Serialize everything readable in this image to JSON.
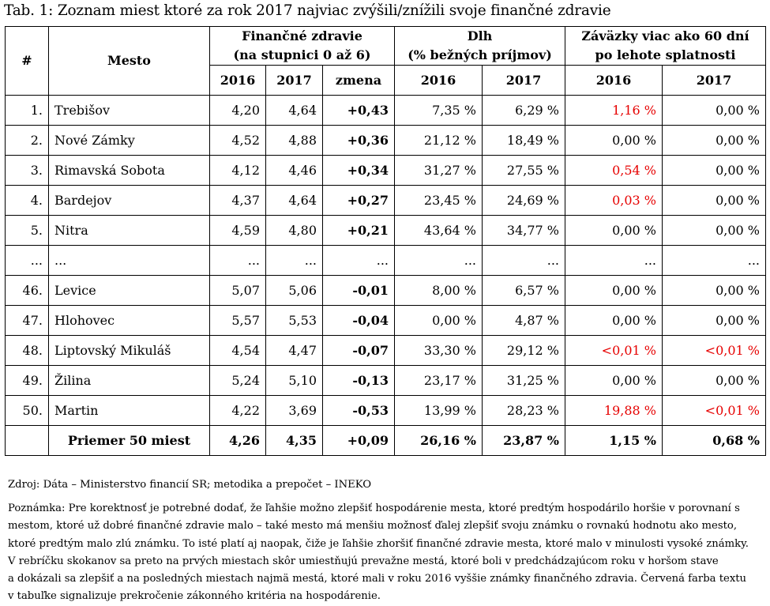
{
  "title": "Tab. 1: Zoznam miest ktoré za rok 2017 najviac zvýšili/znížili svoje finančné zdravie",
  "headers": {
    "num": "#",
    "city": "Mesto",
    "health_line1": "Finančné zdravie",
    "health_line2": "(na stupnici 0 až 6)",
    "debt_line1": "Dlh",
    "debt_line2": "(% bežných príjmov)",
    "arrears_line1": "Záväzky viac ako 60 dní",
    "arrears_line2": "po lehote splatnosti",
    "y2016": "2016",
    "y2017": "2017",
    "change": "zmena"
  },
  "rows": [
    {
      "n": "1.",
      "city": "Trebišov",
      "h16": "4,20",
      "h17": "4,64",
      "chg": "+0,43",
      "d16": "7,35 %",
      "d17": "6,29 %",
      "a16": "1,16 %",
      "a17": "0,00 %",
      "a16_red": true,
      "a17_red": false
    },
    {
      "n": "2.",
      "city": "Nové Zámky",
      "h16": "4,52",
      "h17": "4,88",
      "chg": "+0,36",
      "d16": "21,12 %",
      "d17": "18,49 %",
      "a16": "0,00 %",
      "a17": "0,00 %",
      "a16_red": false,
      "a17_red": false
    },
    {
      "n": "3.",
      "city": "Rimavská Sobota",
      "h16": "4,12",
      "h17": "4,46",
      "chg": "+0,34",
      "d16": "31,27 %",
      "d17": "27,55 %",
      "a16": "0,54 %",
      "a17": "0,00 %",
      "a16_red": true,
      "a17_red": false
    },
    {
      "n": "4.",
      "city": "Bardejov",
      "h16": "4,37",
      "h17": "4,64",
      "chg": "+0,27",
      "d16": "23,45 %",
      "d17": "24,69 %",
      "a16": "0,03 %",
      "a17": "0,00 %",
      "a16_red": true,
      "a17_red": false
    },
    {
      "n": "5.",
      "city": "Nitra",
      "h16": "4,59",
      "h17": "4,80",
      "chg": "+0,21",
      "d16": "43,64 %",
      "d17": "34,77 %",
      "a16": "0,00 %",
      "a17": "0,00 %",
      "a16_red": false,
      "a17_red": false
    },
    {
      "n": "...",
      "city": "...",
      "h16": "...",
      "h17": "...",
      "chg": "...",
      "d16": "...",
      "d17": "...",
      "a16": "...",
      "a17": "...",
      "a16_red": false,
      "a17_red": false
    },
    {
      "n": "46.",
      "city": "Levice",
      "h16": "5,07",
      "h17": "5,06",
      "chg": "-0,01",
      "d16": "8,00 %",
      "d17": "6,57 %",
      "a16": "0,00 %",
      "a17": "0,00 %",
      "a16_red": false,
      "a17_red": false
    },
    {
      "n": "47.",
      "city": "Hlohovec",
      "h16": "5,57",
      "h17": "5,53",
      "chg": "-0,04",
      "d16": "0,00 %",
      "d17": "4,87 %",
      "a16": "0,00 %",
      "a17": "0,00 %",
      "a16_red": false,
      "a17_red": false
    },
    {
      "n": "48.",
      "city": "Liptovský Mikuláš",
      "h16": "4,54",
      "h17": "4,47",
      "chg": "-0,07",
      "d16": "33,30 %",
      "d17": "29,12 %",
      "a16": "<0,01 %",
      "a17": "<0,01 %",
      "a16_red": true,
      "a17_red": true
    },
    {
      "n": "49.",
      "city": "Žilina",
      "h16": "5,24",
      "h17": "5,10",
      "chg": "-0,13",
      "d16": "23,17 %",
      "d17": "31,25 %",
      "a16": "0,00 %",
      "a17": "0,00 %",
      "a16_red": false,
      "a17_red": false
    },
    {
      "n": "50.",
      "city": "Martin",
      "h16": "4,22",
      "h17": "3,69",
      "chg": "-0,53",
      "d16": "13,99 %",
      "d17": "28,23 %",
      "a16": "19,88 %",
      "a17": "<0,01 %",
      "a16_red": true,
      "a17_red": true
    }
  ],
  "summary": {
    "label": "Priemer 50 miest",
    "h16": "4,26",
    "h17": "4,35",
    "chg": "+0,09",
    "d16": "26,16 %",
    "d17": "23,87 %",
    "a16": "1,15 %",
    "a17": "0,68 %"
  },
  "source": "Zdroj: Dáta – Ministerstvo financií SR; metodika a prepočet – INEKO",
  "note_lines": [
    "Poznámka: Pre korektnosť je potrebné dodať, že ľahšie možno zlepšiť hospodárenie mesta, ktoré predtým hospodárilo horšie v porovnaní s",
    "mestom, ktoré už dobré finančné zdravie malo – také mesto má menšiu možnosť ďalej zlepšiť svoju známku o rovnakú hodnotu ako mesto,",
    "ktoré predtým malo zlú známku. To isté platí aj naopak, čiže je ľahšie zhoršiť finančné zdravie mesta, ktoré malo v minulosti vysoké známky.",
    "V rebríčku skokanov sa preto na prvých miestach skôr umiestňujú prevažne mestá, ktoré boli v predchádzajúcom roku v horšom stave",
    "a dokázali sa zlepšiť a na posledných miestach najmä mestá, ktoré mali v roku 2016 vyššie známky finančného zdravia. Červená farba textu",
    "v tabuľke signalizuje prekročenie zákonného kritéria na hospodárenie."
  ],
  "colors": {
    "warning_red": "#e60000",
    "text": "#000000"
  }
}
